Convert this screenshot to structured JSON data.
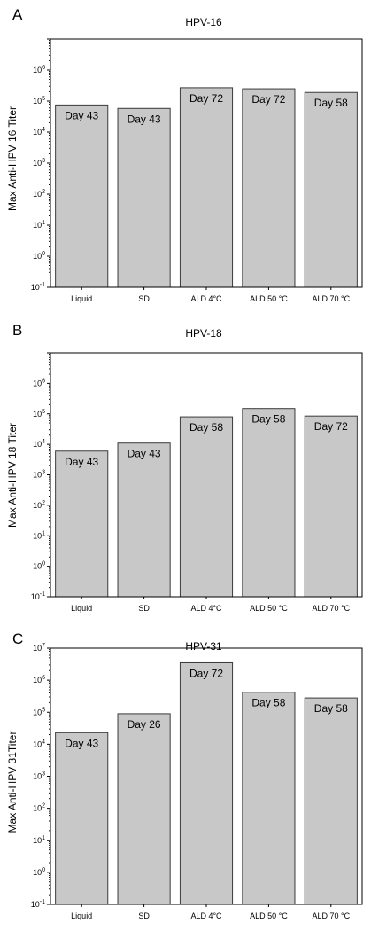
{
  "chart_data": [
    {
      "type": "bar",
      "panel_letter": "A",
      "title": "HPV-16",
      "ylabel": "Max Anti-HPV 16 Titer",
      "yscale": "log",
      "ylim": [
        0.1,
        10000000
      ],
      "ytick_labels": [
        "10-1",
        "100",
        "101",
        "102",
        "103",
        "104",
        "105",
        "106",
        ""
      ],
      "categories": [
        "Liquid",
        "SD",
        "ALD 4°C",
        "ALD 50 °C",
        "ALD 70 °C"
      ],
      "values": [
        75000,
        58000,
        270000,
        250000,
        190000
      ],
      "data_labels": [
        "Day 43",
        "Day 43",
        "Day 72",
        "Day 72",
        "Day 58"
      ],
      "bar_color": "#c8c8c8"
    },
    {
      "type": "bar",
      "panel_letter": "B",
      "title": "HPV-18",
      "ylabel": "Max Anti-HPV 18 Titer",
      "yscale": "log",
      "ylim": [
        0.1,
        10000000
      ],
      "ytick_labels": [
        "10-1",
        "100",
        "101",
        "102",
        "103",
        "104",
        "105",
        "106",
        ""
      ],
      "categories": [
        "Liquid",
        "SD",
        "ALD 4°C",
        "ALD 50 °C",
        "ALD 70 °C"
      ],
      "values": [
        6000,
        11000,
        80000,
        150000,
        85000
      ],
      "data_labels": [
        "Day 43",
        "Day 43",
        "Day 58",
        "Day 58",
        "Day 72"
      ],
      "bar_color": "#c8c8c8"
    },
    {
      "type": "bar",
      "panel_letter": "C",
      "title": "HPV-31",
      "ylabel": "Max Anti-HPV 31Titer",
      "yscale": "log",
      "ylim": [
        0.1,
        10000000
      ],
      "ytick_labels": [
        "10-1",
        "100",
        "101",
        "102",
        "103",
        "104",
        "105",
        "106",
        "107"
      ],
      "categories": [
        "Liquid",
        "SD",
        "ALD 4°C",
        "ALD 50 °C",
        "ALD 70 °C"
      ],
      "values": [
        23000,
        90000,
        3500000,
        420000,
        280000
      ],
      "data_labels": [
        "Day 43",
        "Day 26",
        "Day 72",
        "Day 58",
        "Day 58"
      ],
      "bar_color": "#c8c8c8"
    }
  ]
}
